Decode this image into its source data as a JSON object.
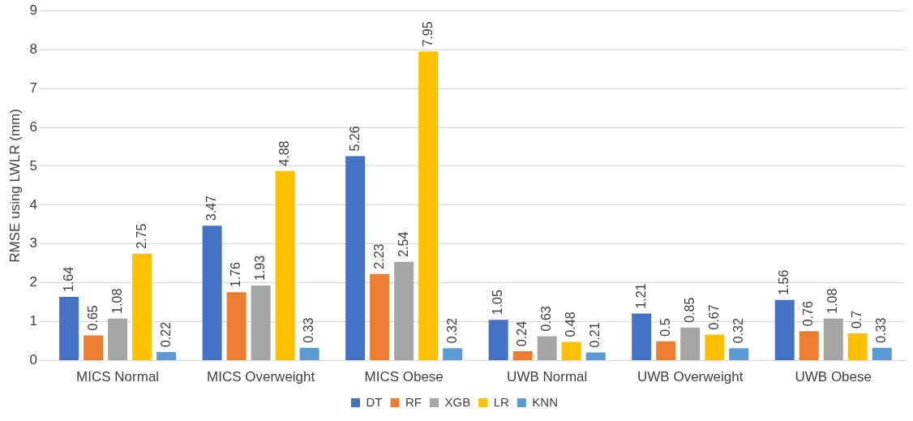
{
  "chart_data": {
    "type": "bar",
    "ylabel": "RMSE using LWLR (mm)",
    "categories": [
      "MICS Normal",
      "MICS Overweight",
      "MICS Obese",
      "UWB Normal",
      "UWB Overweight",
      "UWB Obese"
    ],
    "series": [
      {
        "name": "DT",
        "color": "#4472c4",
        "values": [
          1.64,
          3.47,
          5.26,
          1.05,
          1.21,
          1.56
        ]
      },
      {
        "name": "RF",
        "color": "#ed7d31",
        "values": [
          0.65,
          1.76,
          2.23,
          0.24,
          0.5,
          0.76
        ]
      },
      {
        "name": "XGB",
        "color": "#a5a5a5",
        "values": [
          1.08,
          1.93,
          2.54,
          0.63,
          0.85,
          1.08
        ]
      },
      {
        "name": "LR",
        "color": "#ffc000",
        "values": [
          2.75,
          4.88,
          7.95,
          0.48,
          0.67,
          0.7
        ]
      },
      {
        "name": "KNN",
        "color": "#5b9bd5",
        "values": [
          0.22,
          0.33,
          0.32,
          0.21,
          0.32,
          0.33
        ]
      }
    ],
    "ylim": [
      0,
      9
    ],
    "yticks": [
      0,
      1,
      2,
      3,
      4,
      5,
      6,
      7,
      8,
      9
    ],
    "grid": "y",
    "legend": "bottom",
    "data_labels": true
  }
}
